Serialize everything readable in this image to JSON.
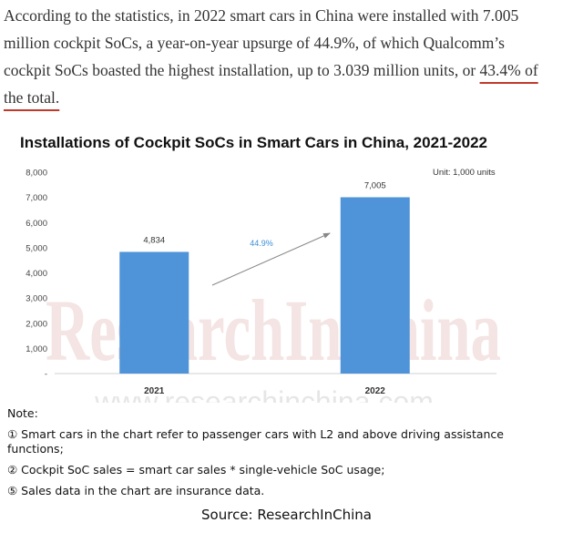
{
  "paragraph": {
    "line1": "According to the statistics, in 2022 smart cars in China were installed with 7.005",
    "line2": "million cockpit SoCs, a year-on-year upsurge of 44.9%, of which Qualcomm’s",
    "line3_pre": "cockpit SoCs boasted the highest installation, up to 3.039 million units, or ",
    "line3_hl": "43.4% of",
    "line4_hl": "the total."
  },
  "chart_data": {
    "type": "bar",
    "title": "Installations of Cockpit SoCs in Smart Cars in China, 2021-2022",
    "unit": "Unit: 1,000 units",
    "categories": [
      "2021",
      "2022"
    ],
    "values": [
      4834,
      7005
    ],
    "value_labels": [
      "4,834",
      "7,005"
    ],
    "yticks": [
      "8,000",
      "7,000",
      "6,000",
      "5,000",
      "4,000",
      "3,000",
      "2,000",
      "1,000",
      "-"
    ],
    "ylim": [
      0,
      8000
    ],
    "growth_label": "44.9%",
    "bar_color": "#4f93d8",
    "grid": false
  },
  "watermark": {
    "brand": "ResearchInChina",
    "url": "www.researchinchina.com"
  },
  "notes": {
    "title": "Note:",
    "items": [
      "① Smart cars in the chart refer to passenger cars with L2 and above driving assistance functions;",
      "② Cockpit SoC sales = smart car sales * single-vehicle SoC usage;",
      "⑤ Sales data in the chart are insurance data."
    ]
  },
  "source": "Source: ResearchInChina"
}
